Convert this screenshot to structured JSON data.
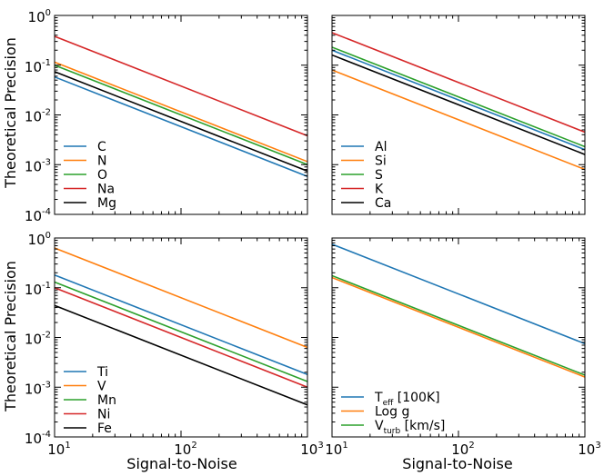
{
  "figure": {
    "ylabel": "Theoretical Precision",
    "xlabel": "Signal-to-Noise",
    "colors": {
      "blue": "#1f77b4",
      "orange": "#ff7f0e",
      "green": "#2ca02c",
      "red": "#d62728",
      "black": "#000000"
    }
  },
  "chart_data": [
    {
      "type": "line",
      "xscale": "log",
      "yscale": "log",
      "xlim": [
        10,
        1000
      ],
      "ylim": [
        0.0001,
        1
      ],
      "xticks": [
        10,
        100,
        1000
      ],
      "yticks": [
        0.0001,
        0.001,
        0.01,
        0.1,
        1
      ],
      "ylabel": "Theoretical Precision",
      "xlabel": "",
      "legend_position": "lower-left",
      "series": [
        {
          "name": "C",
          "color": "#1f77b4",
          "x": [
            10,
            1000
          ],
          "y": [
            0.058,
            0.00058
          ]
        },
        {
          "name": "N",
          "color": "#ff7f0e",
          "x": [
            10,
            1000
          ],
          "y": [
            0.115,
            0.00115
          ]
        },
        {
          "name": "O",
          "color": "#2ca02c",
          "x": [
            10,
            1000
          ],
          "y": [
            0.1,
            0.001
          ]
        },
        {
          "name": "Na",
          "color": "#d62728",
          "x": [
            10,
            1000
          ],
          "y": [
            0.38,
            0.0038
          ]
        },
        {
          "name": "Mg",
          "color": "#000000",
          "x": [
            10,
            1000
          ],
          "y": [
            0.074,
            0.00074
          ]
        }
      ]
    },
    {
      "type": "line",
      "xscale": "log",
      "yscale": "log",
      "xlim": [
        10,
        1000
      ],
      "ylim": [
        0.0001,
        1
      ],
      "xticks": [
        10,
        100,
        1000
      ],
      "yticks": [
        0.0001,
        0.001,
        0.01,
        0.1,
        1
      ],
      "ylabel": "",
      "xlabel": "",
      "legend_position": "lower-left",
      "series": [
        {
          "name": "Al",
          "color": "#1f77b4",
          "x": [
            10,
            1000
          ],
          "y": [
            0.2,
            0.002
          ]
        },
        {
          "name": "Si",
          "color": "#ff7f0e",
          "x": [
            10,
            1000
          ],
          "y": [
            0.08,
            0.0008
          ]
        },
        {
          "name": "S",
          "color": "#2ca02c",
          "x": [
            10,
            1000
          ],
          "y": [
            0.23,
            0.0023
          ]
        },
        {
          "name": "K",
          "color": "#d62728",
          "x": [
            10,
            1000
          ],
          "y": [
            0.45,
            0.0045
          ]
        },
        {
          "name": "Ca",
          "color": "#000000",
          "x": [
            10,
            1000
          ],
          "y": [
            0.16,
            0.0016
          ]
        }
      ]
    },
    {
      "type": "line",
      "xscale": "log",
      "yscale": "log",
      "xlim": [
        10,
        1000
      ],
      "ylim": [
        0.0001,
        1
      ],
      "xticks": [
        10,
        100,
        1000
      ],
      "yticks": [
        0.0001,
        0.001,
        0.01,
        0.1,
        1
      ],
      "ylabel": "Theoretical Precision",
      "xlabel": "Signal-to-Noise",
      "legend_position": "lower-left",
      "series": [
        {
          "name": "Ti",
          "color": "#1f77b4",
          "x": [
            10,
            1000
          ],
          "y": [
            0.18,
            0.0018
          ]
        },
        {
          "name": "V",
          "color": "#ff7f0e",
          "x": [
            10,
            1000
          ],
          "y": [
            0.63,
            0.0063
          ]
        },
        {
          "name": "Mn",
          "color": "#2ca02c",
          "x": [
            10,
            1000
          ],
          "y": [
            0.13,
            0.0013
          ]
        },
        {
          "name": "Ni",
          "color": "#d62728",
          "x": [
            10,
            1000
          ],
          "y": [
            0.1,
            0.001
          ]
        },
        {
          "name": "Fe",
          "color": "#000000",
          "x": [
            10,
            1000
          ],
          "y": [
            0.044,
            0.00044
          ]
        }
      ]
    },
    {
      "type": "line",
      "xscale": "log",
      "yscale": "log",
      "xlim": [
        10,
        1000
      ],
      "ylim": [
        0.0001,
        1
      ],
      "xticks": [
        10,
        100,
        1000
      ],
      "yticks": [
        0.0001,
        0.001,
        0.01,
        0.1,
        1
      ],
      "ylabel": "",
      "xlabel": "Signal-to-Noise",
      "legend_position": "lower-left",
      "series": [
        {
          "name": "T",
          "sub": "eff",
          "suffix": " [100K]",
          "color": "#1f77b4",
          "x": [
            10,
            1000
          ],
          "y": [
            0.75,
            0.0075
          ]
        },
        {
          "name": "Log g",
          "color": "#ff7f0e",
          "x": [
            10,
            1000
          ],
          "y": [
            0.16,
            0.0016
          ]
        },
        {
          "name": "V",
          "sub": "turb",
          "suffix": " [km/s]",
          "color": "#2ca02c",
          "x": [
            10,
            1000
          ],
          "y": [
            0.175,
            0.00175
          ]
        }
      ]
    }
  ]
}
